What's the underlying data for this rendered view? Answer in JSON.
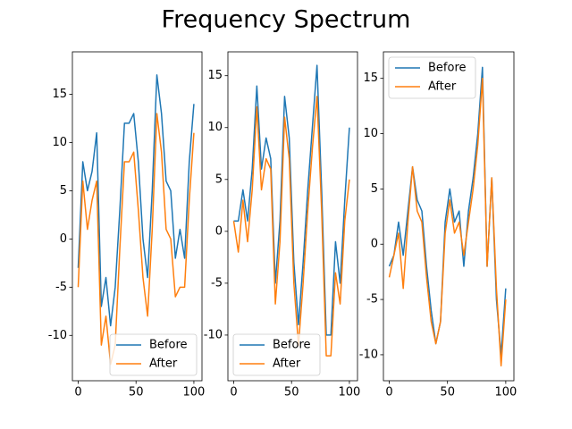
{
  "title": "Frequency Spectrum",
  "chart_data": [
    {
      "type": "line",
      "legend": "lower right",
      "x": [
        0,
        4,
        8,
        12,
        16,
        20,
        24,
        28,
        32,
        36,
        40,
        44,
        48,
        52,
        56,
        60,
        64,
        68,
        72,
        76,
        80,
        84,
        88,
        92,
        96,
        100
      ],
      "series": [
        {
          "name": "Before",
          "color": "#1f77b4",
          "values": [
            -3,
            8,
            5,
            7,
            11,
            -7,
            -4,
            -9,
            -5,
            3,
            12,
            12,
            13,
            8,
            0,
            -4,
            5,
            17,
            13,
            6,
            5,
            -2,
            1,
            -2,
            8,
            14
          ]
        },
        {
          "name": "After",
          "color": "#ff7f0e",
          "values": [
            -5,
            6,
            1,
            4,
            6,
            -11,
            -8,
            -13,
            -11,
            -1,
            8,
            8,
            9,
            3,
            -4,
            -8,
            1,
            13,
            9,
            1,
            0,
            -6,
            -5,
            -5,
            4,
            11
          ]
        }
      ],
      "xlim": [
        -5,
        107
      ],
      "xticks": [
        0,
        50,
        100
      ],
      "ylim": [
        -14.7,
        19.4
      ],
      "yticks": [
        -10,
        -5,
        0,
        5,
        10,
        15
      ]
    },
    {
      "type": "line",
      "legend": "lower left",
      "x": [
        0,
        4,
        8,
        12,
        16,
        20,
        24,
        28,
        32,
        36,
        40,
        44,
        48,
        52,
        56,
        60,
        64,
        68,
        72,
        76,
        80,
        84,
        88,
        92,
        96,
        100
      ],
      "series": [
        {
          "name": "Before",
          "color": "#1f77b4",
          "values": [
            1,
            1,
            4,
            1,
            6,
            14,
            6,
            9,
            7,
            -5,
            1,
            13,
            9,
            -3,
            -9,
            -3,
            4,
            10,
            16,
            4,
            -10,
            -10,
            -1,
            -5,
            3,
            10
          ]
        },
        {
          "name": "After",
          "color": "#ff7f0e",
          "values": [
            1,
            -2,
            3,
            -1,
            4,
            12,
            4,
            7,
            6,
            -7,
            -1,
            11,
            7,
            -5,
            -11,
            -5,
            2,
            8,
            13,
            2,
            -12,
            -12,
            -4,
            -7,
            1,
            5
          ]
        }
      ],
      "xlim": [
        -5,
        107
      ],
      "xticks": [
        0,
        50,
        100
      ],
      "ylim": [
        -14.4,
        17.3
      ],
      "yticks": [
        -10,
        -5,
        0,
        5,
        10,
        15
      ]
    },
    {
      "type": "line",
      "legend": "upper left",
      "x": [
        0,
        4,
        8,
        12,
        16,
        20,
        24,
        28,
        32,
        36,
        40,
        44,
        48,
        52,
        56,
        60,
        64,
        68,
        72,
        76,
        80,
        84,
        88,
        92,
        96,
        100
      ],
      "series": [
        {
          "name": "Before",
          "color": "#1f77b4",
          "values": [
            -2,
            -1,
            2,
            -1,
            3,
            7,
            4,
            3,
            -2,
            -6,
            -9,
            -7,
            2,
            5,
            2,
            3,
            -2,
            3,
            6,
            10,
            16,
            -2,
            6,
            -5,
            -10,
            -4
          ]
        },
        {
          "name": "After",
          "color": "#ff7f0e",
          "values": [
            -3,
            -1,
            1,
            -4,
            2,
            7,
            3,
            2,
            -3,
            -7,
            -9,
            -7,
            1,
            4,
            1,
            2,
            -1,
            2,
            5,
            9,
            15,
            -2,
            6,
            -4,
            -11,
            -5
          ]
        }
      ],
      "xlim": [
        -5,
        107
      ],
      "xticks": [
        0,
        50,
        100
      ],
      "ylim": [
        -12.35,
        17.4
      ],
      "yticks": [
        -10,
        -5,
        0,
        5,
        10,
        15
      ]
    }
  ]
}
